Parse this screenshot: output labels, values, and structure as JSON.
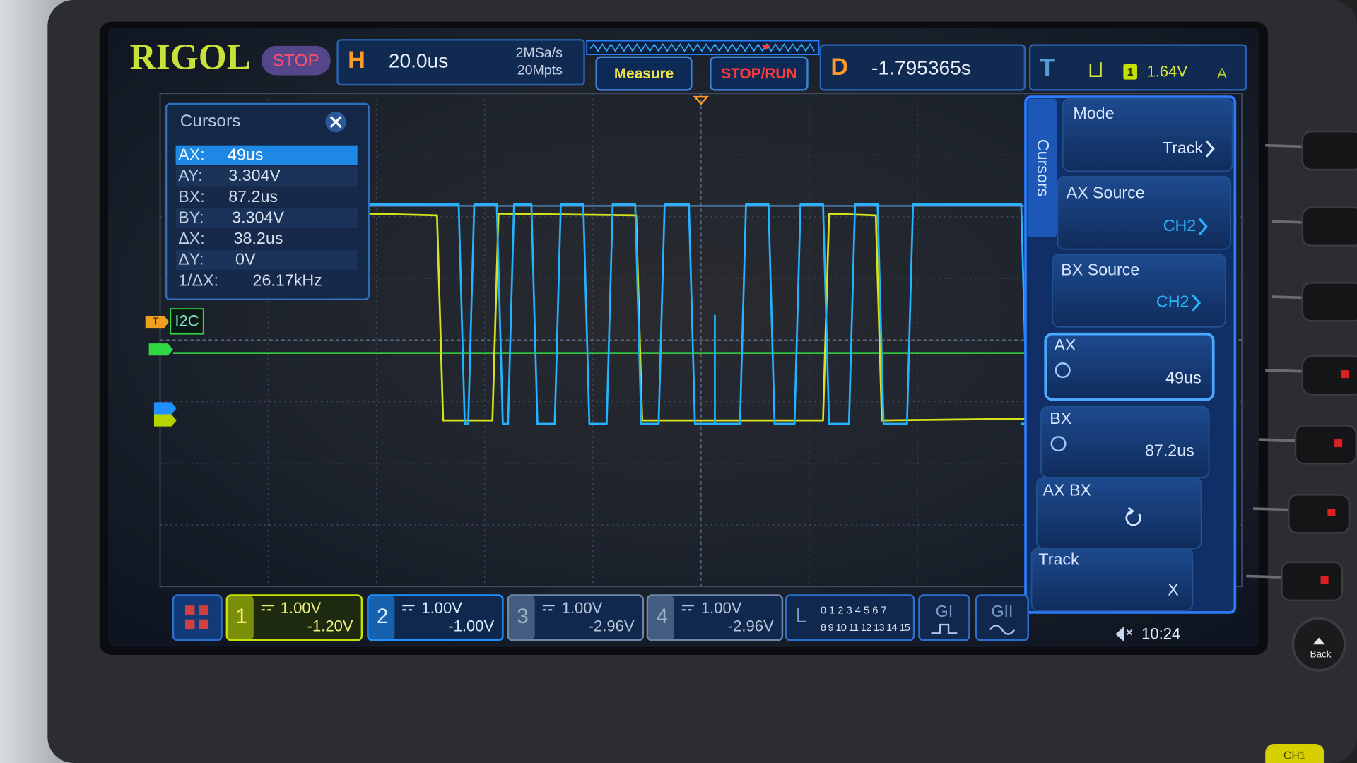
{
  "header": {
    "brand": "RIGOL",
    "run_status": "STOP",
    "horizontal_label": "H",
    "timebase": "20.0us",
    "sample_rate": "2MSa/s",
    "memory_depth": "20Mpts",
    "measure": "Measure",
    "stop_run": "STOP/RUN",
    "delay_label": "D",
    "delay": "-1.795365s",
    "trigger_label": "T",
    "trigger_channel": "1",
    "trigger_level": "1.64V",
    "trigger_mode": "A"
  },
  "cursors_panel": {
    "title": "Cursors",
    "rows": [
      {
        "label": "AX:",
        "value": "49us"
      },
      {
        "label": "AY:",
        "value": "3.304V"
      },
      {
        "label": "BX:",
        "value": "87.2us"
      },
      {
        "label": "BY:",
        "value": "3.304V"
      },
      {
        "label": "ΔX:",
        "value": "38.2us"
      },
      {
        "label": "ΔY:",
        "value": "0V"
      },
      {
        "label": "1/ΔX:",
        "value": "26.17kHz"
      }
    ]
  },
  "trace_markers": {
    "trigger": "T",
    "bus": "I2C"
  },
  "side_menu": {
    "title": "Cursors",
    "items": [
      {
        "label": "Mode",
        "value": "Track"
      },
      {
        "label": "AX Source",
        "value": "CH2"
      },
      {
        "label": "BX Source",
        "value": "CH2"
      },
      {
        "label": "AX",
        "value": "49us"
      },
      {
        "label": "BX",
        "value": "87.2us"
      },
      {
        "label": "AX BX"
      },
      {
        "label": "Track",
        "value": "X"
      }
    ]
  },
  "channels": [
    {
      "number": "1",
      "scale": "1.00V",
      "offset": "-1.20V"
    },
    {
      "number": "2",
      "scale": "1.00V",
      "offset": "-1.00V"
    },
    {
      "number": "3",
      "scale": "1.00V",
      "offset": "-2.96V"
    },
    {
      "number": "4",
      "scale": "1.00V",
      "offset": "-2.96V"
    }
  ],
  "logic": {
    "label": "L",
    "bits_low": "0 1 2 3 4 5 6 7",
    "bits_high": "8 9 10 11 12 13 14 15"
  },
  "generators": [
    "GI",
    "GII"
  ],
  "clock": "10:24",
  "back_key": "Back",
  "ch1_key": "CH1"
}
